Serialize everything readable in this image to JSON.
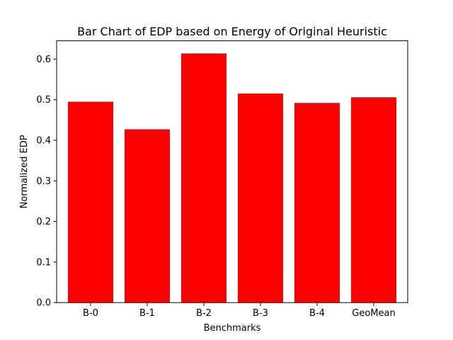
{
  "chart_data": {
    "type": "bar",
    "title": "Bar Chart of EDP based on Energy of Original Heuristic",
    "xlabel": "Benchmarks",
    "ylabel": "Normalized EDP",
    "categories": [
      "B-0",
      "B-1",
      "B-2",
      "B-3",
      "B-4",
      "GeoMean"
    ],
    "values": [
      0.495,
      0.427,
      0.614,
      0.515,
      0.492,
      0.506
    ],
    "ylim": [
      0,
      0.645
    ],
    "yticks": [
      0.0,
      0.1,
      0.2,
      0.3,
      0.4,
      0.5,
      0.6
    ],
    "ytick_labels": [
      "0.0",
      "0.1",
      "0.2",
      "0.3",
      "0.4",
      "0.5",
      "0.6"
    ],
    "bar_color": "#ff0000",
    "grid": false,
    "legend": "none"
  }
}
